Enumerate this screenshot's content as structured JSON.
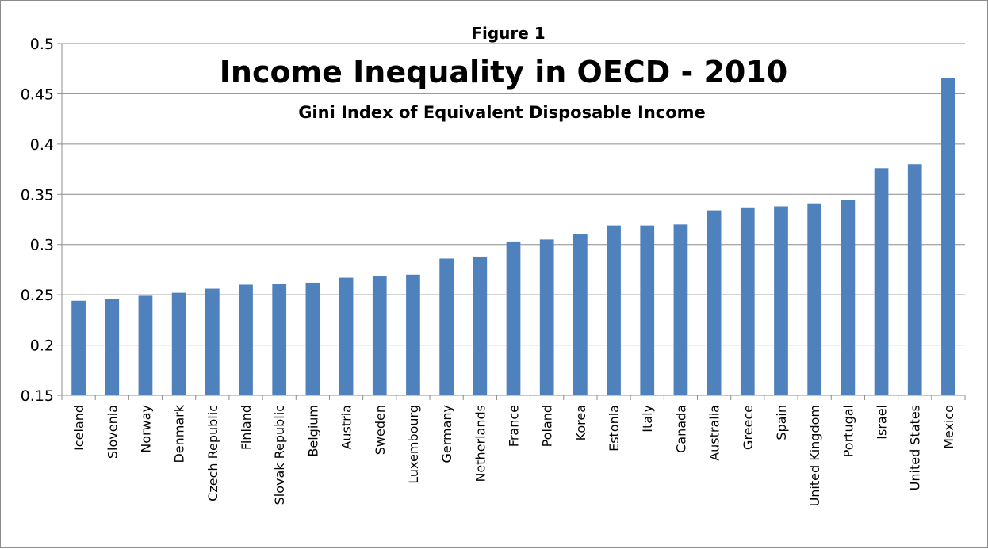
{
  "chart_data": {
    "type": "bar",
    "figure_label": "Figure 1",
    "title": "Income Inequality in OECD - 2010",
    "subtitle": "Gini Index of Equivalent Disposable Income",
    "xlabel": "",
    "ylabel": "",
    "ylim": [
      0.15,
      0.5
    ],
    "yticks": [
      "0.15",
      "0.2",
      "0.25",
      "0.3",
      "0.35",
      "0.4",
      "0.45",
      "0.5"
    ],
    "grid": true,
    "legend": "none",
    "bar_color": "#4f81bd",
    "categories": [
      "Iceland",
      "Slovenia",
      "Norway",
      "Denmark",
      "Czech Republic",
      "Finland",
      "Slovak Republic",
      "Belgium",
      "Austria",
      "Sweden",
      "Luxembourg",
      "Germany",
      "Netherlands",
      "France",
      "Poland",
      "Korea",
      "Estonia",
      "Italy",
      "Canada",
      "Australia",
      "Greece",
      "Spain",
      "United Kingdom",
      "Portugal",
      "Israel",
      "United States",
      "Mexico"
    ],
    "values": [
      0.244,
      0.246,
      0.249,
      0.252,
      0.256,
      0.26,
      0.261,
      0.262,
      0.267,
      0.269,
      0.27,
      0.286,
      0.288,
      0.303,
      0.305,
      0.31,
      0.319,
      0.319,
      0.32,
      0.334,
      0.337,
      0.338,
      0.341,
      0.344,
      0.376,
      0.38,
      0.466
    ]
  }
}
